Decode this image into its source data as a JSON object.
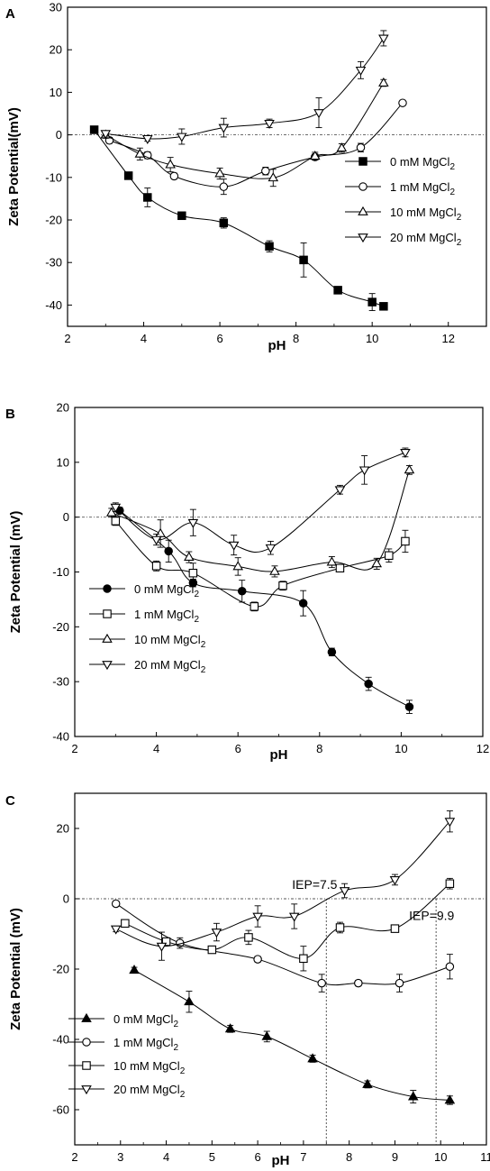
{
  "figure": {
    "panels": [
      "A",
      "B",
      "C"
    ]
  },
  "chart_data": [
    {
      "panel": "A",
      "type": "scatter",
      "xlabel": "pH",
      "ylabel": "Zeta Potential(mV)",
      "xlim": [
        2,
        13
      ],
      "ylim": [
        -45,
        30
      ],
      "xticks": [
        2,
        4,
        6,
        8,
        10,
        12
      ],
      "yticks": [
        -40,
        -30,
        -20,
        -10,
        0,
        10,
        20,
        30
      ],
      "reference_line": 0,
      "legend_position": "right-middle",
      "series": [
        {
          "name": "0 mM MgCl",
          "sub": "2",
          "marker": "square",
          "filled": true,
          "x": [
            2.7,
            3.6,
            4.1,
            5.0,
            6.1,
            7.3,
            8.2,
            9.1,
            10.0,
            10.3
          ],
          "y": [
            1.2,
            -9.6,
            -14.7,
            -19.0,
            -20.7,
            -26.2,
            -29.4,
            -36.5,
            -39.3,
            -40.3
          ],
          "err": [
            0.8,
            0.8,
            2.2,
            0.8,
            1.2,
            1.3,
            4.0,
            0.8,
            2.0,
            0.6
          ]
        },
        {
          "name": "1 mM MgCl",
          "sub": "2",
          "marker": "circle",
          "filled": false,
          "x": [
            3.1,
            4.1,
            4.8,
            6.1,
            7.2,
            8.5,
            9.7,
            10.8
          ],
          "y": [
            -1.3,
            -4.8,
            -9.7,
            -12.2,
            -8.5,
            -5.2,
            -3.0,
            7.5
          ],
          "err": [
            0.7,
            0.8,
            0.7,
            1.8,
            0.9,
            0.7,
            1.0,
            0.6
          ]
        },
        {
          "name": "10 mM MgCl",
          "sub": "2",
          "marker": "triangle-up",
          "filled": false,
          "x": [
            3.0,
            3.9,
            4.7,
            6.0,
            7.4,
            8.5,
            9.2,
            10.3
          ],
          "y": [
            0.0,
            -4.5,
            -7.0,
            -9.1,
            -10.1,
            -5.0,
            -3.1,
            12.2
          ],
          "err": [
            0.8,
            1.4,
            1.7,
            1.3,
            2.0,
            0.9,
            1.0,
            0.8
          ]
        },
        {
          "name": "20 mM MgCl",
          "sub": "2",
          "marker": "triangle-down",
          "filled": false,
          "x": [
            3.0,
            4.1,
            5.0,
            6.1,
            7.3,
            8.6,
            9.7,
            10.3
          ],
          "y": [
            0.3,
            -0.9,
            -0.4,
            1.7,
            2.7,
            5.2,
            15.2,
            22.7
          ],
          "err": [
            0.6,
            0.6,
            1.8,
            2.2,
            1.0,
            3.5,
            2.0,
            1.8
          ]
        }
      ]
    },
    {
      "panel": "B",
      "type": "scatter",
      "xlabel": "pH",
      "ylabel": "Zeta Potential (mV)",
      "xlim": [
        2,
        12
      ],
      "ylim": [
        -40,
        20
      ],
      "xticks": [
        2,
        4,
        6,
        8,
        10,
        12
      ],
      "yticks": [
        -40,
        -30,
        -20,
        -10,
        0,
        10,
        20
      ],
      "reference_line": 0,
      "legend_position": "left-bottom",
      "series": [
        {
          "name": "0 mM MgCl",
          "sub": "2",
          "marker": "circle",
          "filled": true,
          "x": [
            3.1,
            4.3,
            4.9,
            6.1,
            7.6,
            8.3,
            9.2,
            10.2
          ],
          "y": [
            1.2,
            -6.2,
            -12.0,
            -13.5,
            -15.7,
            -24.6,
            -30.4,
            -34.6
          ],
          "err": [
            0.6,
            2.0,
            0.7,
            2.0,
            2.3,
            0.7,
            1.2,
            1.2
          ]
        },
        {
          "name": "1 mM MgCl",
          "sub": "2",
          "marker": "square",
          "filled": false,
          "x": [
            3.0,
            4.0,
            4.9,
            6.4,
            7.1,
            8.5,
            9.7,
            10.1
          ],
          "y": [
            -0.7,
            -8.9,
            -10.2,
            -16.3,
            -12.5,
            -9.3,
            -7.0,
            -4.4
          ],
          "err": [
            0.8,
            0.9,
            1.8,
            0.8,
            0.8,
            0.7,
            1.2,
            2.0
          ]
        },
        {
          "name": "10 mM MgCl",
          "sub": "2",
          "marker": "triangle-up",
          "filled": false,
          "x": [
            2.9,
            4.1,
            4.8,
            6.0,
            6.9,
            8.3,
            9.4,
            10.2
          ],
          "y": [
            0.8,
            -3.0,
            -7.3,
            -9.0,
            -9.9,
            -8.2,
            -8.5,
            8.6
          ],
          "err": [
            0.8,
            2.5,
            1.0,
            1.6,
            1.0,
            1.0,
            1.0,
            0.8
          ]
        },
        {
          "name": "20 mM MgCl",
          "sub": "2",
          "marker": "triangle-down",
          "filled": false,
          "x": [
            3.0,
            4.0,
            4.9,
            5.9,
            6.8,
            8.5,
            9.1,
            10.1
          ],
          "y": [
            1.8,
            -4.1,
            -1.0,
            -5.1,
            -5.6,
            5.0,
            8.6,
            11.8
          ],
          "err": [
            0.8,
            1.0,
            2.4,
            1.8,
            1.2,
            0.8,
            2.6,
            0.8
          ]
        }
      ]
    },
    {
      "panel": "C",
      "type": "scatter",
      "xlabel": "pH",
      "ylabel": "Zeta Potential (mV)",
      "xlim": [
        2,
        11
      ],
      "ylim": [
        -70,
        30
      ],
      "xticks": [
        2,
        3,
        4,
        5,
        6,
        7,
        8,
        9,
        10,
        11
      ],
      "yticks": [
        -60,
        -40,
        -20,
        0,
        20
      ],
      "reference_line": 0,
      "legend_position": "left-bottom",
      "annotations": [
        {
          "text": "IEP=7.5",
          "x": 7.5
        },
        {
          "text": "IEP=9.9",
          "x": 9.9
        }
      ],
      "series": [
        {
          "name": "0 mM MgCl",
          "sub": "2",
          "marker": "triangle-up",
          "filled": true,
          "x": [
            3.3,
            4.5,
            5.4,
            6.2,
            7.2,
            8.4,
            9.4,
            10.2
          ],
          "y": [
            -20.3,
            -29.3,
            -37.0,
            -39.2,
            -45.5,
            -52.8,
            -56.3,
            -57.3
          ],
          "err": [
            0.8,
            3.0,
            1.0,
            1.5,
            1.0,
            1.0,
            1.8,
            1.2
          ]
        },
        {
          "name": "1 mM MgCl",
          "sub": "2",
          "marker": "circle",
          "filled": false,
          "x": [
            2.9,
            4.3,
            6.0,
            7.4,
            8.2,
            9.1,
            10.2
          ],
          "y": [
            -1.4,
            -12.6,
            -17.2,
            -24.0,
            -24.0,
            -24.0,
            -19.3
          ],
          "err": [
            0.7,
            1.5,
            0.8,
            2.5,
            0.8,
            2.5,
            3.5
          ]
        },
        {
          "name": "10 mM MgCl",
          "sub": "2",
          "marker": "square",
          "filled": false,
          "x": [
            3.1,
            4.0,
            5.0,
            5.8,
            7.0,
            7.8,
            9.0,
            10.2
          ],
          "y": [
            -7.0,
            -12.2,
            -14.5,
            -11.0,
            -17.0,
            -8.2,
            -8.5,
            4.3
          ],
          "err": [
            0.8,
            1.0,
            0.8,
            2.0,
            3.5,
            1.5,
            0.8,
            1.5
          ]
        },
        {
          "name": "20 mM MgCl",
          "sub": "2",
          "marker": "triangle-down",
          "filled": false,
          "x": [
            2.9,
            3.9,
            5.1,
            6.0,
            6.8,
            7.9,
            9.0,
            10.2
          ],
          "y": [
            -8.6,
            -13.5,
            -9.5,
            -5.0,
            -5.0,
            2.3,
            5.4,
            22.0
          ],
          "err": [
            0.8,
            4.0,
            2.5,
            3.0,
            3.5,
            2.0,
            1.5,
            3.0
          ]
        }
      ]
    }
  ]
}
